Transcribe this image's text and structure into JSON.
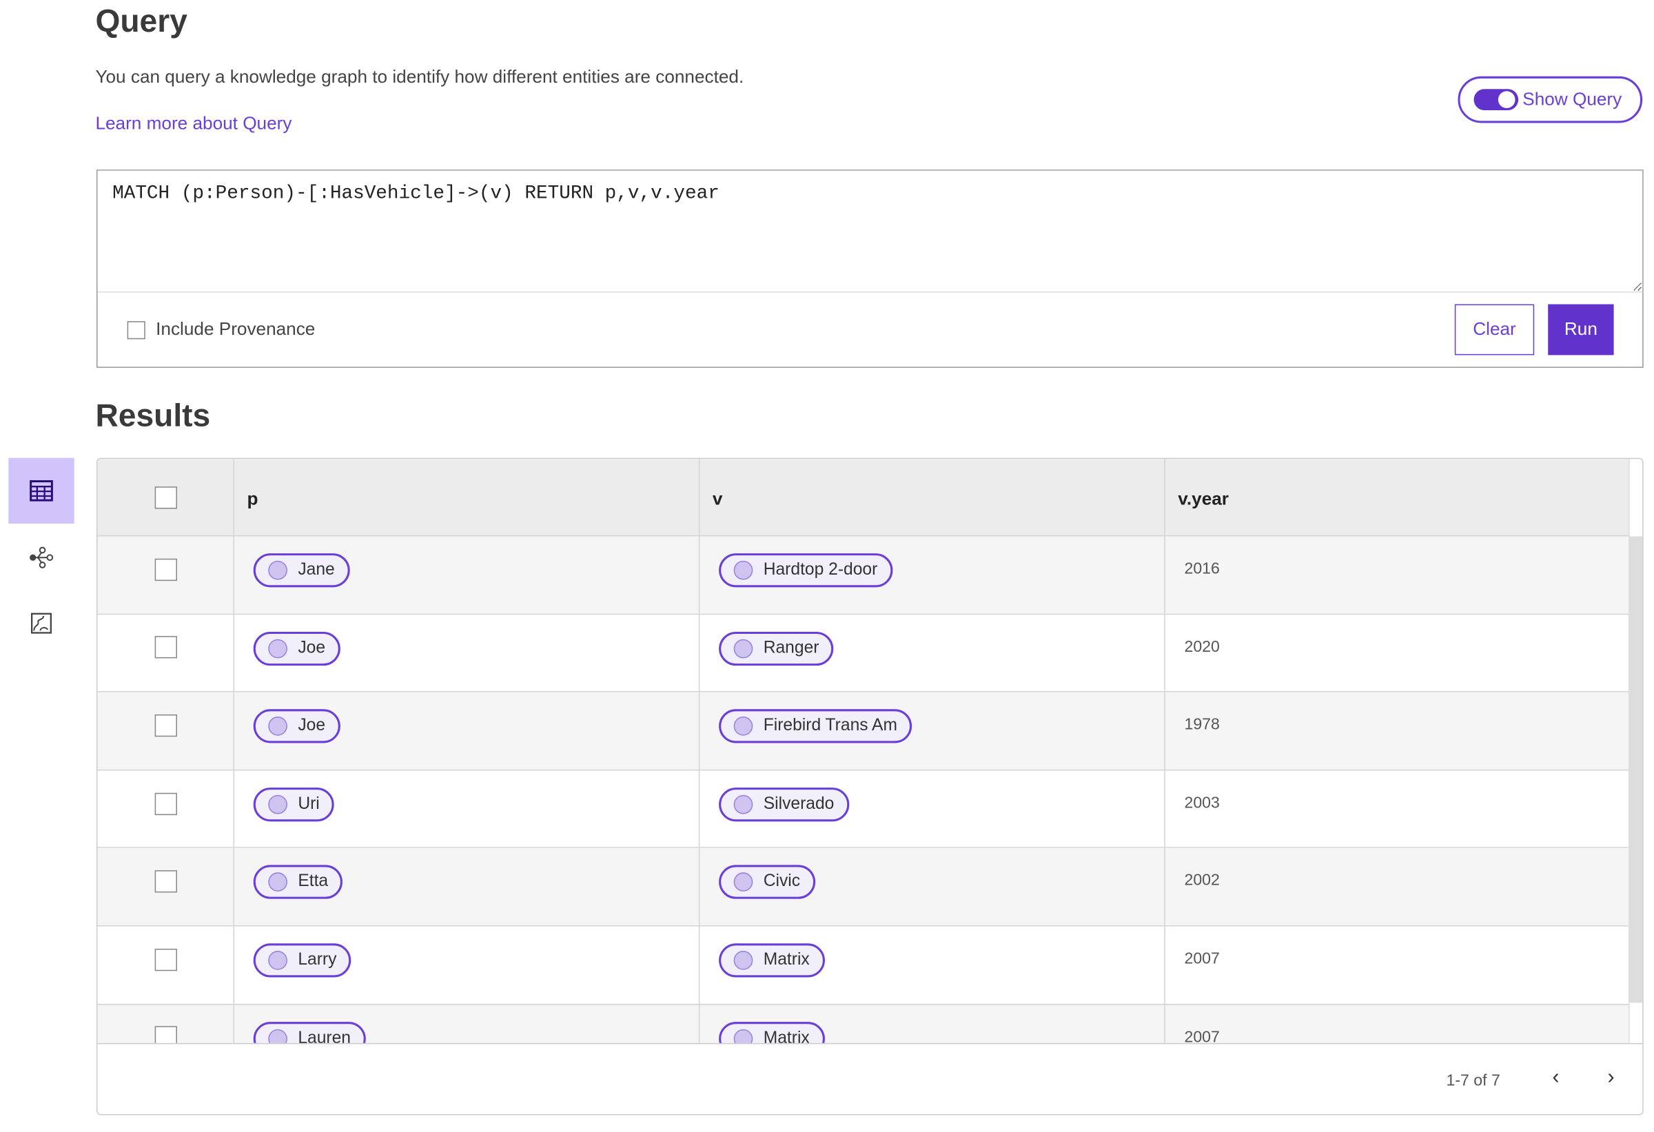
{
  "header": {
    "title": "Query",
    "description": "You can query a knowledge graph to identify how different entities are connected.",
    "learn_more": "Learn more about Query",
    "show_query_label": "Show Query",
    "show_query_on": true
  },
  "query": {
    "text": "MATCH (p:Person)-[:HasVehicle]->(v) RETURN p,v,v.year",
    "include_provenance_label": "Include Provenance",
    "include_provenance_checked": false,
    "clear_label": "Clear",
    "run_label": "Run"
  },
  "results": {
    "title": "Results",
    "columns": [
      "p",
      "v",
      "v.year"
    ],
    "rows": [
      {
        "p": "Jane",
        "v": "Hardtop 2-door",
        "year": "2016"
      },
      {
        "p": "Joe",
        "v": "Ranger",
        "year": "2020"
      },
      {
        "p": "Joe",
        "v": "Firebird Trans Am",
        "year": "1978"
      },
      {
        "p": "Uri",
        "v": "Silverado",
        "year": "2003"
      },
      {
        "p": "Etta",
        "v": "Civic",
        "year": "2002"
      },
      {
        "p": "Larry",
        "v": "Matrix",
        "year": "2007"
      },
      {
        "p": "Lauren",
        "v": "Matrix",
        "year": "2007"
      }
    ],
    "pagination": "1-7 of 7"
  },
  "sidebar": {
    "items": [
      {
        "icon": "table-icon",
        "active": true
      },
      {
        "icon": "graph-icon",
        "active": false
      },
      {
        "icon": "chart-icon",
        "active": false
      }
    ]
  },
  "colors": {
    "accent": "#6233cc",
    "active_view_bg": "#d1c4fb",
    "chip_bg": "#f1eff9",
    "header_bg": "#ececec"
  }
}
